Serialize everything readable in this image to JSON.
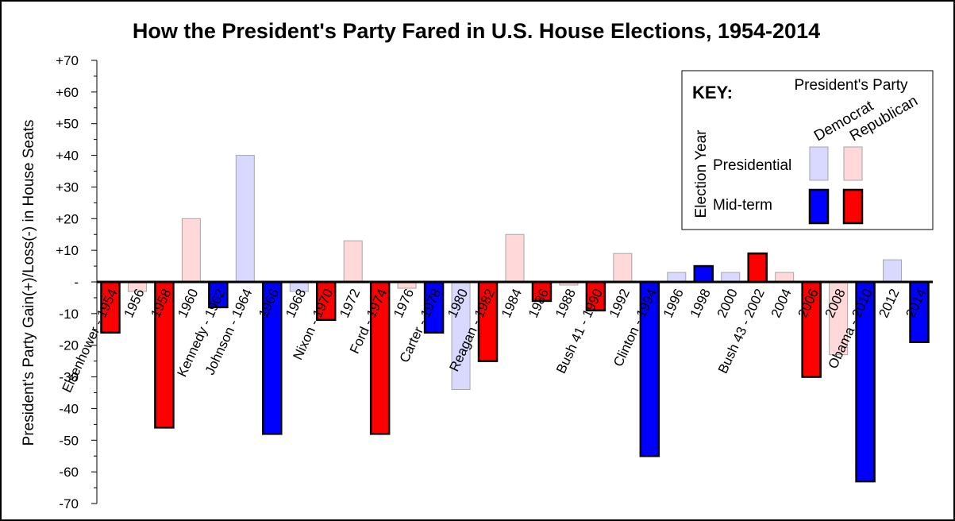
{
  "chart_data": {
    "type": "bar",
    "title": "How the President's Party Fared in U.S. House Elections, 1954-2014",
    "ylabel": "President's Party Gain(+)/Loss(-) in House Seats",
    "xlabel": "",
    "ylim": [
      -70,
      70
    ],
    "yticks": [
      {
        "value": 70,
        "label": "+70"
      },
      {
        "value": 60,
        "label": "+60"
      },
      {
        "value": 50,
        "label": "+50"
      },
      {
        "value": 40,
        "label": "+40"
      },
      {
        "value": 30,
        "label": "+30"
      },
      {
        "value": 20,
        "label": "+20"
      },
      {
        "value": 10,
        "label": "+10"
      },
      {
        "value": 0,
        "label": "-"
      },
      {
        "value": -10,
        "label": "-10"
      },
      {
        "value": -20,
        "label": "-20"
      },
      {
        "value": -30,
        "label": "-30"
      },
      {
        "value": -40,
        "label": "-40"
      },
      {
        "value": -50,
        "label": "-50"
      },
      {
        "value": -60,
        "label": "-60"
      },
      {
        "value": -70,
        "label": "-70"
      }
    ],
    "grid": false,
    "legend_position": "top-right",
    "categories": [
      {
        "label": "Eisenhower - 1954",
        "value": -16,
        "party": "Republican",
        "election": "Mid-term"
      },
      {
        "label": "1956",
        "value": -3,
        "party": "Republican",
        "election": "Presidential"
      },
      {
        "label": "1958",
        "value": -46,
        "party": "Republican",
        "election": "Mid-term"
      },
      {
        "label": "1960",
        "value": 20,
        "party": "Republican",
        "election": "Presidential"
      },
      {
        "label": "Kennedy - 1962",
        "value": -8,
        "party": "Democrat",
        "election": "Mid-term"
      },
      {
        "label": "Johnson - 1964",
        "value": 40,
        "party": "Democrat",
        "election": "Presidential"
      },
      {
        "label": "1966",
        "value": -48,
        "party": "Democrat",
        "election": "Mid-term"
      },
      {
        "label": "1968",
        "value": -3,
        "party": "Democrat",
        "election": "Presidential"
      },
      {
        "label": "Nixon - 1970",
        "value": -12,
        "party": "Republican",
        "election": "Mid-term"
      },
      {
        "label": "1972",
        "value": 13,
        "party": "Republican",
        "election": "Presidential"
      },
      {
        "label": "Ford - 1974",
        "value": -48,
        "party": "Republican",
        "election": "Mid-term"
      },
      {
        "label": "1976",
        "value": -2,
        "party": "Republican",
        "election": "Presidential"
      },
      {
        "label": "Carter - 1978",
        "value": -16,
        "party": "Democrat",
        "election": "Mid-term"
      },
      {
        "label": "1980",
        "value": -34,
        "party": "Democrat",
        "election": "Presidential"
      },
      {
        "label": "Reagan - 1982",
        "value": -25,
        "party": "Republican",
        "election": "Mid-term"
      },
      {
        "label": "1984",
        "value": 15,
        "party": "Republican",
        "election": "Presidential"
      },
      {
        "label": "1986",
        "value": -6,
        "party": "Republican",
        "election": "Mid-term"
      },
      {
        "label": "1988",
        "value": -1,
        "party": "Republican",
        "election": "Presidential"
      },
      {
        "label": "Bush 41 - 1990",
        "value": -9,
        "party": "Republican",
        "election": "Mid-term"
      },
      {
        "label": "1992",
        "value": 9,
        "party": "Republican",
        "election": "Presidential"
      },
      {
        "label": "Clinton - 1994",
        "value": -55,
        "party": "Democrat",
        "election": "Mid-term"
      },
      {
        "label": "1996",
        "value": 3,
        "party": "Democrat",
        "election": "Presidential"
      },
      {
        "label": "1998",
        "value": 5,
        "party": "Democrat",
        "election": "Mid-term"
      },
      {
        "label": "2000",
        "value": 3,
        "party": "Democrat",
        "election": "Presidential"
      },
      {
        "label": "Bush 43 - 2002",
        "value": 9,
        "party": "Republican",
        "election": "Mid-term"
      },
      {
        "label": "2004",
        "value": 3,
        "party": "Republican",
        "election": "Presidential"
      },
      {
        "label": "2006",
        "value": -30,
        "party": "Republican",
        "election": "Mid-term"
      },
      {
        "label": "2008",
        "value": -23,
        "party": "Republican",
        "election": "Presidential"
      },
      {
        "label": "Obama - 2010",
        "value": -63,
        "party": "Democrat",
        "election": "Mid-term"
      },
      {
        "label": "2012",
        "value": 7,
        "party": "Democrat",
        "election": "Presidential"
      },
      {
        "label": "2014",
        "value": -19,
        "party": "Democrat",
        "election": "Mid-term"
      }
    ],
    "colors": {
      "Democrat_Presidential": "#d9d9ff",
      "Republican_Presidential": "#ffd9d9",
      "Democrat_Mid-term": "#0000ff",
      "Republican_Mid-term": "#ff0000"
    },
    "legend": {
      "key_label": "KEY:",
      "header": "President's Party",
      "columns": [
        "Democrat",
        "Republican"
      ],
      "row_axis_label": "Election Year",
      "rows": [
        "Presidential",
        "Mid-term"
      ]
    }
  }
}
